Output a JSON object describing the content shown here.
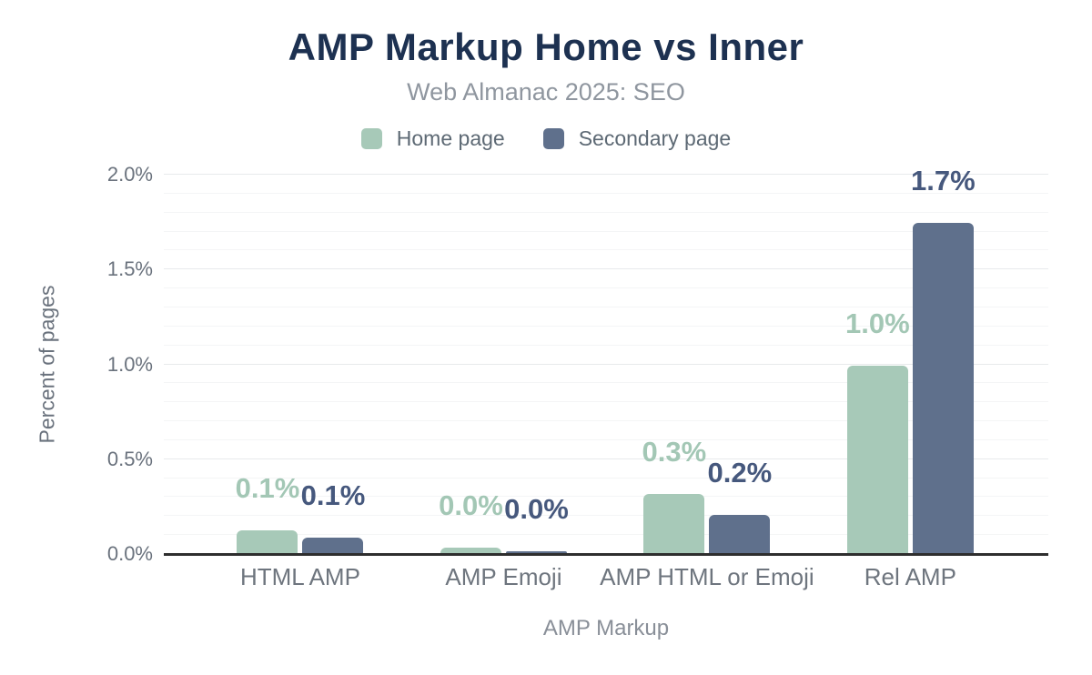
{
  "header": {
    "title": "AMP Markup Home vs Inner",
    "subtitle": "Web Almanac 2025: SEO"
  },
  "legend": {
    "items": [
      {
        "label": "Home page",
        "color": "#a7c9b8"
      },
      {
        "label": "Secondary page",
        "color": "#5f708c"
      }
    ]
  },
  "chart_data": {
    "type": "bar",
    "title": "AMP Markup Home vs Inner",
    "subtitle": "Web Almanac 2025: SEO",
    "categories": [
      "HTML AMP",
      "AMP Emoji",
      "AMP HTML or Emoji",
      "Rel AMP"
    ],
    "series": [
      {
        "name": "Home page",
        "color": "#a7c9b8",
        "label_color": "#a3c7b5",
        "values": [
          0.12,
          0.03,
          0.31,
          0.99
        ],
        "labels": [
          "0.1%",
          "0.0%",
          "0.3%",
          "1.0%"
        ]
      },
      {
        "name": "Secondary page",
        "color": "#5f708c",
        "label_color": "#46587d",
        "values": [
          0.08,
          0.01,
          0.2,
          1.74
        ],
        "labels": [
          "0.1%",
          "0.0%",
          "0.2%",
          "1.7%"
        ]
      }
    ],
    "xlabel": "AMP Markup",
    "ylabel": "Percent of pages",
    "ylim": [
      0,
      2.0
    ],
    "yticks": [
      {
        "value": 2.0,
        "label": "2.0%"
      },
      {
        "value": 1.5,
        "label": "1.5%"
      },
      {
        "value": 1.0,
        "label": "1.0%"
      },
      {
        "value": 0.5,
        "label": "0.5%"
      },
      {
        "value": 0.0,
        "label": "0.0%"
      }
    ],
    "minor_grid_step": 0.1,
    "major_grid_step": 0.5,
    "grid": true,
    "legend_position": "top"
  }
}
